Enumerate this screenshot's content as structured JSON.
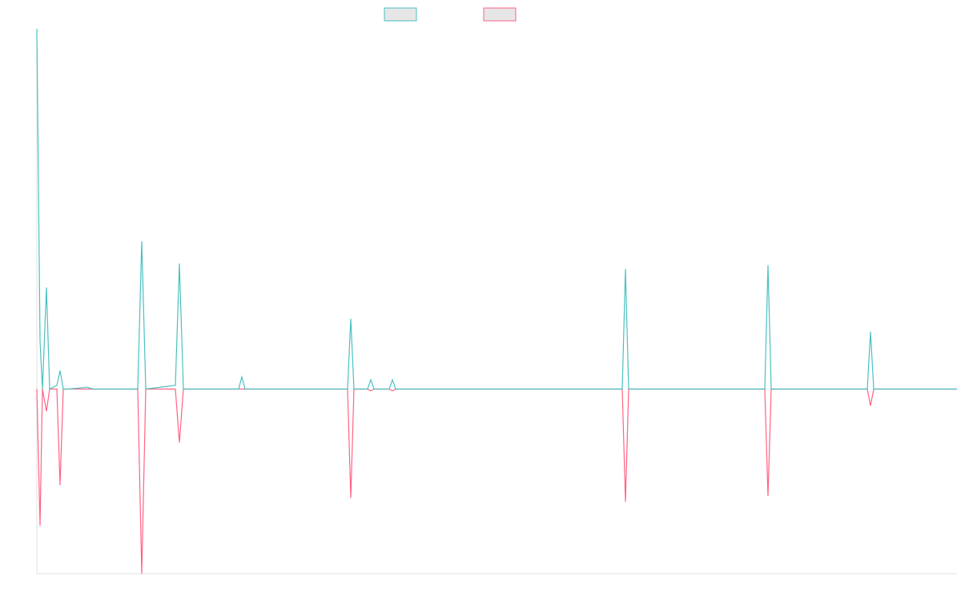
{
  "chart_data": {
    "type": "line",
    "x": [
      0,
      4,
      7,
      12,
      16,
      25,
      29,
      33,
      40,
      63,
      70,
      126,
      131,
      136,
      173,
      178,
      183,
      189,
      201,
      210,
      252,
      256,
      260,
      330,
      388,
      392,
      396,
      413,
      417,
      421,
      440,
      444,
      448,
      731,
      735,
      739,
      909,
      913,
      917,
      1037,
      1041,
      1045,
      1149
    ],
    "series": [
      {
        "color": "#4bc0c0",
        "values": [
          195,
          26,
          0,
          55,
          0,
          2,
          10,
          0,
          0,
          1,
          0,
          0,
          80,
          0,
          2,
          68,
          0,
          0,
          0,
          0,
          0,
          6.5,
          0,
          0,
          0,
          38,
          0,
          0,
          5,
          0,
          0,
          5,
          0,
          0,
          65,
          0,
          0,
          67,
          0,
          0,
          31,
          0,
          0
        ]
      },
      {
        "color": "#ff6384",
        "values": [
          0,
          -74,
          0,
          -12,
          0,
          0,
          -52,
          0,
          0,
          0,
          0,
          0,
          -100,
          0,
          0,
          -29,
          0,
          0,
          0,
          0,
          0,
          0,
          0,
          0,
          0,
          -59,
          0,
          0,
          -1,
          0,
          0,
          -1,
          0,
          0,
          -61,
          0,
          0,
          -58,
          0,
          0,
          -9,
          0,
          0
        ]
      }
    ],
    "xlim": [
      0,
      1149
    ],
    "ylim": [
      -100,
      195
    ]
  }
}
